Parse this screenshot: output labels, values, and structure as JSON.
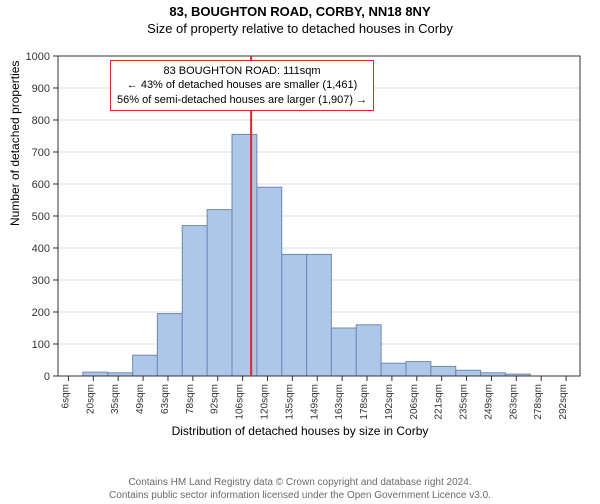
{
  "header": {
    "title": "83, BOUGHTON ROAD, CORBY, NN18 8NY",
    "subtitle": "Size of property relative to detached houses in Corby"
  },
  "chart": {
    "type": "histogram",
    "background_color": "#ffffff",
    "plot_bg": "#ffffff",
    "axis_color": "#333333",
    "grid_color": "#dddddd",
    "bar_fill": "#aec7e8",
    "bar_stroke": "#6a89b8",
    "marker_line_color": "#d42a2a",
    "marker_x": 111,
    "ylabel": "Number of detached properties",
    "xlabel": "Distribution of detached houses by size in Corby",
    "ylim": [
      0,
      1000
    ],
    "ytick_step": 100,
    "xlim": [
      0,
      300
    ],
    "xtick_start": 6,
    "xtick_step": 14.3,
    "xtick_count": 21,
    "bars": [
      {
        "x0": 14.3,
        "x1": 28.6,
        "y": 12
      },
      {
        "x0": 28.6,
        "x1": 42.9,
        "y": 10
      },
      {
        "x0": 42.9,
        "x1": 57.1,
        "y": 65
      },
      {
        "x0": 57.1,
        "x1": 71.4,
        "y": 195
      },
      {
        "x0": 71.4,
        "x1": 85.7,
        "y": 470
      },
      {
        "x0": 85.7,
        "x1": 100.0,
        "y": 520
      },
      {
        "x0": 100.0,
        "x1": 114.3,
        "y": 755
      },
      {
        "x0": 114.3,
        "x1": 128.6,
        "y": 590
      },
      {
        "x0": 128.6,
        "x1": 142.9,
        "y": 380
      },
      {
        "x0": 142.9,
        "x1": 157.1,
        "y": 380
      },
      {
        "x0": 157.1,
        "x1": 171.4,
        "y": 150
      },
      {
        "x0": 171.4,
        "x1": 185.7,
        "y": 160
      },
      {
        "x0": 185.7,
        "x1": 200.0,
        "y": 40
      },
      {
        "x0": 200.0,
        "x1": 214.3,
        "y": 45
      },
      {
        "x0": 214.3,
        "x1": 228.6,
        "y": 30
      },
      {
        "x0": 228.6,
        "x1": 242.9,
        "y": 18
      },
      {
        "x0": 242.9,
        "x1": 257.1,
        "y": 10
      },
      {
        "x0": 257.1,
        "x1": 271.4,
        "y": 6
      }
    ],
    "callout": {
      "line1": "83 BOUGHTON ROAD: 111sqm",
      "line2": "← 43% of detached houses are smaller (1,461)",
      "line3": "56% of semi-detached houses are larger (1,907) →",
      "border_color": "#d42a2a",
      "fontsize": 11
    }
  },
  "footer": {
    "line1": "Contains HM Land Registry data © Crown copyright and database right 2024.",
    "line2": "Contains public sector information licensed under the Open Government Licence v3.0."
  }
}
